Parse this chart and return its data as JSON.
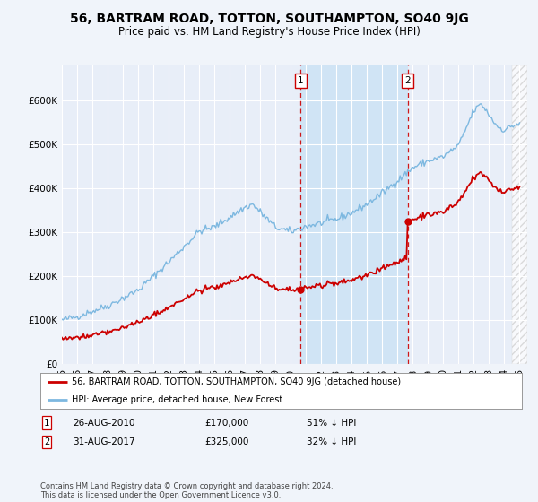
{
  "title": "56, BARTRAM ROAD, TOTTON, SOUTHAMPTON, SO40 9JG",
  "subtitle": "Price paid vs. HM Land Registry's House Price Index (HPI)",
  "background_color": "#f0f4fa",
  "plot_bg_color": "#e8eef8",
  "ylabel_ticks": [
    "£0",
    "£100K",
    "£200K",
    "£300K",
    "£400K",
    "£500K",
    "£600K"
  ],
  "ytick_values": [
    0,
    100000,
    200000,
    300000,
    400000,
    500000,
    600000
  ],
  "ylim": [
    0,
    680000
  ],
  "xlim_start": 1995.0,
  "xlim_end": 2025.5,
  "hpi_color": "#7db8e0",
  "price_color": "#cc0000",
  "dashed_line_color": "#cc0000",
  "shade_color": "#d0e4f5",
  "hatch_color": "#cccccc",
  "marker1_date": 2010.65,
  "marker2_date": 2017.66,
  "marker1_price": 170000,
  "marker2_price": 325000,
  "legend_label_price": "56, BARTRAM ROAD, TOTTON, SOUTHAMPTON, SO40 9JG (detached house)",
  "legend_label_hpi": "HPI: Average price, detached house, New Forest",
  "table_row1": [
    "1",
    "26-AUG-2010",
    "£170,000",
    "51% ↓ HPI"
  ],
  "table_row2": [
    "2",
    "31-AUG-2017",
    "£325,000",
    "32% ↓ HPI"
  ],
  "footer": "Contains HM Land Registry data © Crown copyright and database right 2024.\nThis data is licensed under the Open Government Licence v3.0.",
  "grid_color": "#ffffff",
  "tick_label_fontsize": 7.5,
  "title_fontsize": 10,
  "subtitle_fontsize": 8.5,
  "hatch_start": 2024.5
}
